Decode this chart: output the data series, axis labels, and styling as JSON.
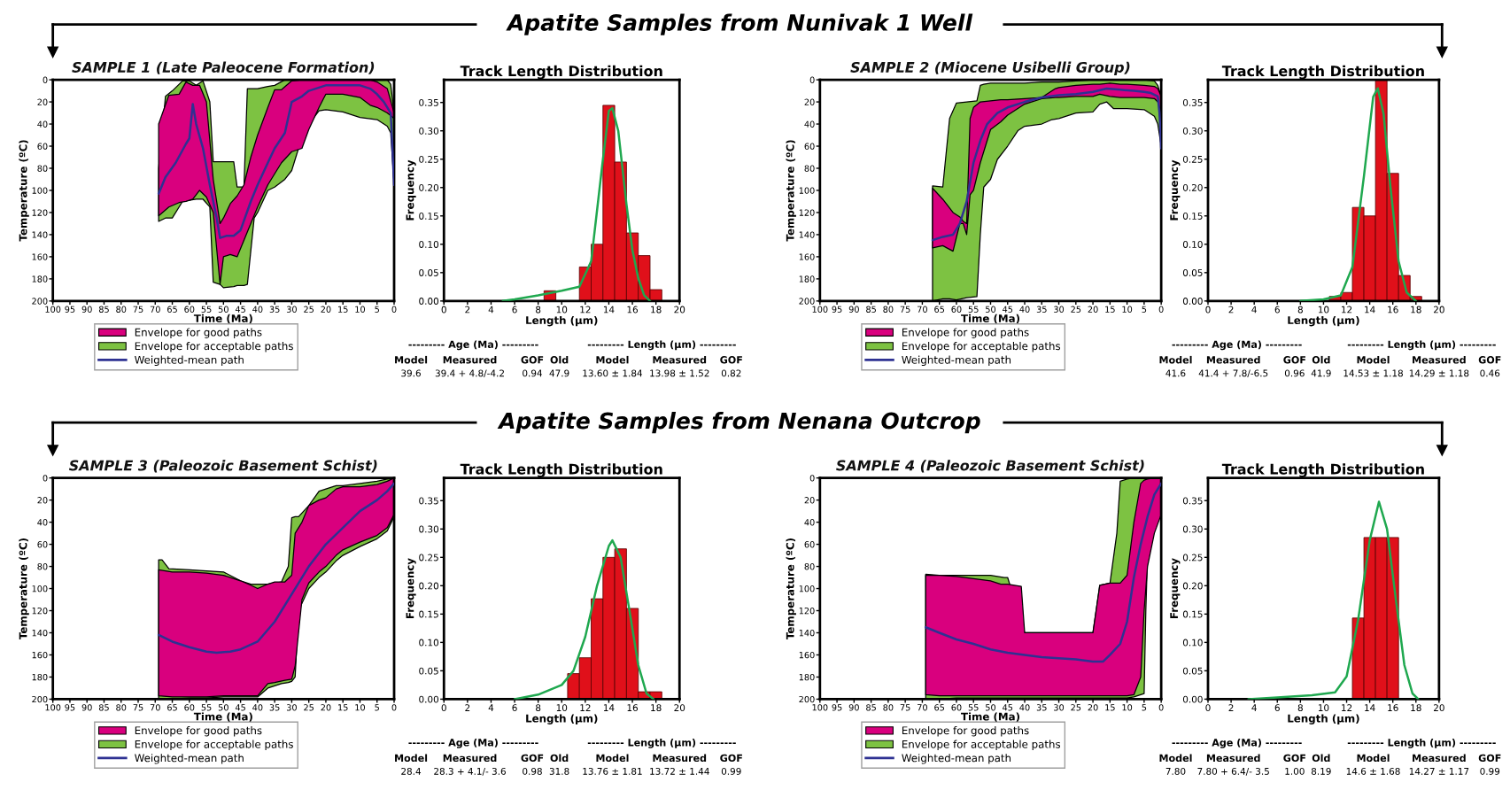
{
  "chart_data": [
    {
      "type": "area",
      "title": "SAMPLE 1 (Late Paleocene Formation)",
      "xlabel": "Time (Ma)",
      "ylabel": "Temperature (ºC)",
      "xlim": [
        100,
        0
      ],
      "ylim": [
        200,
        0
      ],
      "xticks": [
        100,
        95,
        90,
        85,
        80,
        75,
        70,
        65,
        60,
        55,
        50,
        45,
        40,
        35,
        30,
        25,
        20,
        15,
        10,
        5,
        0
      ],
      "yticks": [
        0,
        20,
        40,
        60,
        80,
        100,
        120,
        140,
        160,
        180,
        200
      ],
      "legend": "bottom",
      "grid": false,
      "annotations": [
        "Apatite Samples from Nunivak 1 Well"
      ],
      "series": [
        {
          "name": "Envelope for good paths",
          "type": "area",
          "color": "#d9007e",
          "x": [
            69,
            66,
            63,
            61,
            59,
            57,
            55,
            53,
            51,
            50,
            48,
            46,
            44,
            42,
            40,
            37,
            35,
            33,
            30,
            27,
            25,
            22,
            20,
            15,
            10,
            7,
            5,
            2,
            0
          ],
          "values": [
            null,
            null,
            null,
            null,
            null,
            null,
            null,
            null,
            null,
            null,
            null,
            null,
            null,
            null,
            null,
            null,
            null,
            null,
            null,
            null,
            null,
            null,
            null,
            null,
            null,
            null,
            null,
            null,
            null
          ],
          "lower": [
            40,
            14,
            13,
            2,
            5,
            5,
            20,
            90,
            130,
            125,
            112,
            105,
            95,
            70,
            50,
            25,
            9,
            9,
            1,
            0,
            0,
            0,
            0,
            0,
            0,
            0,
            2,
            8,
            30
          ],
          "upper": [
            123,
            115,
            111,
            110,
            108,
            100,
            106,
            120,
            185,
            160,
            158,
            160,
            145,
            130,
            115,
            95,
            85,
            75,
            65,
            62,
            45,
            25,
            13,
            13,
            16,
            23,
            25,
            30,
            35
          ]
        },
        {
          "name": "Envelope for acceptable paths",
          "type": "area",
          "color": "#7dc242",
          "x": [
            69,
            67,
            65,
            62,
            60,
            58,
            56,
            54,
            53,
            51,
            50,
            47,
            46,
            44,
            43,
            41,
            40,
            37,
            35,
            32,
            30,
            28,
            25,
            22,
            20,
            15,
            10,
            5,
            2,
            1,
            0
          ],
          "values": [
            null,
            null,
            null,
            null,
            null,
            null,
            null,
            null,
            null,
            null,
            null,
            null,
            null,
            null,
            null,
            null,
            null,
            null,
            null,
            null,
            null,
            null,
            null,
            null,
            null,
            null,
            null,
            null,
            null,
            null,
            null
          ],
          "lower": [
            80,
            15,
            10,
            1,
            1,
            5,
            1,
            20,
            74,
            74,
            74,
            74,
            97,
            97,
            8,
            8,
            8,
            6,
            5,
            0,
            0,
            0,
            0,
            0,
            0,
            0,
            0,
            0,
            0,
            4,
            30
          ],
          "upper": [
            128,
            125,
            125,
            110,
            109,
            108,
            108,
            115,
            183,
            185,
            188,
            187,
            186,
            186,
            185,
            125,
            120,
            100,
            97,
            90,
            82,
            62,
            40,
            28,
            27,
            29,
            34,
            36,
            42,
            48,
            95
          ]
        },
        {
          "name": "Weighted-mean path",
          "type": "line",
          "color": "#2e3192",
          "x": [
            69,
            67,
            64,
            61,
            60,
            59,
            58,
            56,
            54,
            52,
            51,
            49,
            47,
            45,
            42,
            40,
            37,
            35,
            32,
            30,
            27,
            25,
            20,
            15,
            10,
            7,
            5,
            3,
            1,
            0
          ],
          "values": [
            103,
            88,
            75,
            58,
            53,
            22,
            40,
            62,
            95,
            125,
            143,
            141,
            141,
            136,
            110,
            95,
            75,
            62,
            48,
            20,
            15,
            10,
            5,
            5,
            5,
            8,
            13,
            20,
            30,
            95
          ]
        }
      ]
    },
    {
      "type": "histogram",
      "title": "Track Length Distribution",
      "xlabel": "Length (µm)",
      "ylabel": "Frequency",
      "xlim": [
        0,
        20
      ],
      "ylim": [
        0,
        0.39
      ],
      "xticks": [
        0,
        2,
        4,
        6,
        8,
        10,
        12,
        14,
        16,
        18,
        20
      ],
      "yticks": [
        {
          "value": 0,
          "label": "0.00"
        },
        {
          "value": 0.05,
          "label": "0.05"
        },
        {
          "value": 0.1,
          "label": "0.10"
        },
        {
          "value": 0.15,
          "label": "0.15"
        },
        {
          "value": 0.2,
          "label": "0.20"
        },
        {
          "value": 0.25,
          "label": "0.25"
        },
        {
          "value": 0.3,
          "label": "0.30"
        },
        {
          "value": 0.35,
          "label": "0.35"
        }
      ],
      "grid": false,
      "color": "#e0101a",
      "bins": [
        8.5,
        9.5,
        10.5,
        11.5,
        12.5,
        13.5,
        14.5,
        15.5,
        16.5,
        17.5,
        18.5
      ],
      "values": [
        0.018,
        0,
        0,
        0.06,
        0.1,
        0.345,
        0.245,
        0.12,
        0.08,
        0.02
      ],
      "series": [
        {
          "type": "line",
          "color": "#1fa84f",
          "x": [
            5,
            6,
            8,
            10,
            11.5,
            12.5,
            13.5,
            14,
            14.3,
            14.8,
            15.5,
            16,
            16.5,
            17,
            17.5
          ],
          "values": [
            0,
            0.003,
            0.01,
            0.018,
            0.025,
            0.07,
            0.25,
            0.335,
            0.34,
            0.3,
            0.17,
            0.09,
            0.04,
            0.01,
            0
          ]
        }
      ],
      "annotations": [
        "--------- Age (Ma) ---------",
        "--------- Length (µm) ---------",
        "Model",
        "Measured",
        "GOF",
        "Old",
        "Model",
        "Measured",
        "GOF",
        "39.6",
        "39.4 + 4.8/-4.2",
        "0.94",
        "47.9",
        "13.60 ± 1.84",
        "13.98 ± 1.52",
        "0.82"
      ]
    },
    {
      "type": "area",
      "title": "SAMPLE 2 (Miocene Usibelli Group)",
      "xlabel": "Time (Ma)",
      "ylabel": "Temperature (ºC)",
      "xlim": [
        100,
        0
      ],
      "ylim": [
        200,
        0
      ],
      "xticks": [
        100,
        95,
        90,
        85,
        80,
        75,
        70,
        65,
        60,
        55,
        50,
        45,
        40,
        35,
        30,
        25,
        20,
        15,
        10,
        5,
        0
      ],
      "yticks": [
        0,
        20,
        40,
        60,
        80,
        100,
        120,
        140,
        160,
        180,
        200
      ],
      "legend": "bottom",
      "grid": false,
      "series": [
        {
          "name": "Envelope for good paths",
          "type": "area",
          "color": "#d9007e",
          "x": [
            67,
            64,
            61,
            59,
            58,
            57,
            56,
            55,
            53,
            50,
            47,
            45,
            40,
            35,
            31,
            30,
            25,
            20,
            18,
            15,
            12,
            10,
            5,
            2,
            1,
            0
          ],
          "values": [
            null,
            null,
            null,
            null,
            null,
            null,
            null,
            null,
            null,
            null,
            null,
            null,
            null,
            null,
            null,
            null,
            null,
            null,
            null,
            null,
            null,
            null,
            null,
            null,
            null,
            null
          ],
          "lower": [
            98,
            108,
            120,
            124,
            128,
            130,
            35,
            25,
            20,
            19,
            18,
            18,
            17,
            16,
            8,
            7,
            5,
            4,
            4,
            3,
            4,
            4,
            5,
            6,
            8,
            15
          ],
          "upper": [
            152,
            150,
            155,
            130,
            130,
            140,
            104,
            100,
            75,
            45,
            38,
            32,
            22,
            17,
            16,
            16,
            15,
            15,
            13,
            15,
            16,
            16,
            16,
            17,
            20,
            30
          ]
        },
        {
          "name": "Envelope for acceptable paths",
          "type": "area",
          "color": "#7dc242",
          "x": [
            67,
            64,
            62,
            60,
            57,
            54,
            53,
            52,
            50,
            48,
            45,
            42,
            40,
            35,
            32,
            30,
            25,
            20,
            18,
            16,
            14,
            10,
            5,
            2,
            1,
            0
          ],
          "values": [
            null,
            null,
            null,
            null,
            null,
            null,
            null,
            null,
            null,
            null,
            null,
            null,
            null,
            null,
            null,
            null,
            null,
            null,
            null,
            null,
            null,
            null,
            null,
            null,
            null,
            null
          ],
          "lower": [
            96,
            97,
            35,
            21,
            20,
            19,
            5,
            4,
            3,
            3,
            3,
            3,
            3,
            2,
            2,
            2,
            1,
            0,
            0,
            0,
            0,
            0,
            0,
            1,
            5,
            15
          ],
          "upper": [
            200,
            198,
            198,
            199,
            197,
            196,
            140,
            97,
            90,
            72,
            60,
            46,
            42,
            40,
            36,
            35,
            30,
            29,
            22,
            20,
            26,
            26,
            27,
            33,
            40,
            60
          ]
        },
        {
          "name": "Weighted-mean path",
          "type": "line",
          "color": "#2e3192",
          "x": [
            67,
            64,
            61,
            59,
            57,
            55,
            53,
            51,
            48,
            45,
            40,
            35,
            30,
            25,
            20,
            16,
            12,
            8,
            5,
            3,
            1,
            0.5,
            0
          ],
          "values": [
            145,
            142,
            140,
            130,
            110,
            75,
            55,
            40,
            30,
            25,
            20,
            16,
            14,
            13,
            11,
            8,
            9,
            10,
            11,
            12,
            15,
            30,
            62
          ]
        }
      ]
    },
    {
      "type": "histogram",
      "title": "Track Length Distribution",
      "xlabel": "Length (µm)",
      "ylabel": "Frequency",
      "xlim": [
        0,
        20
      ],
      "ylim": [
        0,
        0.39
      ],
      "xticks": [
        0,
        2,
        4,
        6,
        8,
        10,
        12,
        14,
        16,
        18,
        20
      ],
      "yticks": [
        {
          "value": 0,
          "label": "0.00"
        },
        {
          "value": 0.05,
          "label": "0.05"
        },
        {
          "value": 0.1,
          "label": "0.10"
        },
        {
          "value": 0.15,
          "label": "0.15"
        },
        {
          "value": 0.2,
          "label": "0.20"
        },
        {
          "value": 0.25,
          "label": "0.25"
        },
        {
          "value": 0.3,
          "label": "0.30"
        },
        {
          "value": 0.35,
          "label": "0.35"
        }
      ],
      "grid": false,
      "color": "#e0101a",
      "bins": [
        10.5,
        11.5,
        12.5,
        13.5,
        14.5,
        15.5,
        16.5,
        17.5,
        18.5
      ],
      "values": [
        0.008,
        0.015,
        0.165,
        0.15,
        0.39,
        0.225,
        0.045,
        0.008
      ],
      "series": [
        {
          "type": "line",
          "color": "#1fa84f",
          "x": [
            8,
            10,
            11.5,
            12.5,
            13.5,
            14.3,
            14.7,
            15.2,
            15.8,
            16.5,
            17.2,
            18
          ],
          "values": [
            0,
            0.003,
            0.01,
            0.06,
            0.22,
            0.36,
            0.375,
            0.33,
            0.2,
            0.07,
            0.015,
            0
          ]
        }
      ],
      "annotations": [
        "--------- Age (Ma) ---------",
        "--------- Length (µm) ---------",
        "Model",
        "Measured",
        "GOF",
        "Old",
        "Model",
        "Measured",
        "GOF",
        "41.6",
        "41.4 + 7.8/-6.5",
        "0.96",
        "41.9",
        "14.53 ± 1.18",
        "14.29 ± 1.18",
        "0.46"
      ]
    },
    {
      "type": "area",
      "title": "SAMPLE 3 (Paleozoic Basement Schist)",
      "xlabel": "Time (Ma)",
      "ylabel": "Temperature (ºC)",
      "xlim": [
        100,
        0
      ],
      "ylim": [
        200,
        0
      ],
      "xticks": [
        100,
        95,
        90,
        85,
        80,
        75,
        70,
        65,
        60,
        55,
        50,
        45,
        40,
        35,
        30,
        25,
        20,
        15,
        10,
        5,
        0
      ],
      "yticks": [
        0,
        20,
        40,
        60,
        80,
        100,
        120,
        140,
        160,
        180,
        200
      ],
      "legend": "bottom",
      "grid": false,
      "annotations": [
        "Apatite Samples from Nenana Outcrop"
      ],
      "series": [
        {
          "name": "Envelope for good paths",
          "type": "area",
          "color": "#d9007e",
          "x": [
            69,
            65,
            60,
            55,
            50,
            45,
            42,
            40,
            37,
            35,
            32,
            30,
            29,
            27,
            25,
            22,
            20,
            17,
            15,
            10,
            5,
            2,
            0
          ],
          "values": [
            null,
            null,
            null,
            null,
            null,
            null,
            null,
            null,
            null,
            null,
            null,
            null,
            null,
            null,
            null,
            null,
            null,
            null,
            null,
            null,
            null,
            null,
            null
          ],
          "lower": [
            83,
            85,
            85,
            86,
            88,
            93,
            97,
            100,
            96,
            94,
            94,
            88,
            50,
            40,
            25,
            20,
            18,
            10,
            8,
            8,
            6,
            3,
            0
          ],
          "upper": [
            197,
            198,
            198,
            198,
            197,
            197,
            197,
            197,
            186,
            185,
            183,
            182,
            170,
            110,
            95,
            85,
            80,
            70,
            65,
            58,
            52,
            45,
            33
          ]
        },
        {
          "name": "Envelope for acceptable paths",
          "type": "area",
          "color": "#7dc242",
          "x": [
            69,
            68,
            66,
            60,
            55,
            50,
            45,
            42,
            40,
            37,
            35,
            33,
            31,
            30,
            29,
            28,
            25,
            22,
            20,
            17,
            15,
            10,
            5,
            2,
            0
          ],
          "values": [
            null,
            null,
            null,
            null,
            null,
            null,
            null,
            null,
            null,
            null,
            null,
            null,
            null,
            null,
            null,
            null,
            null,
            null,
            null,
            null,
            null,
            null,
            null,
            null,
            null
          ],
          "lower": [
            74,
            74,
            82,
            83,
            84,
            85,
            93,
            96,
            96,
            96,
            95,
            94,
            80,
            36,
            35,
            35,
            25,
            12,
            10,
            7,
            7,
            5,
            3,
            1,
            0
          ],
          "upper": [
            200,
            200,
            200,
            199,
            199,
            198,
            198,
            198,
            198,
            190,
            188,
            186,
            185,
            184,
            180,
            120,
            100,
            90,
            85,
            75,
            70,
            62,
            55,
            48,
            35
          ]
        },
        {
          "name": "Weighted-mean path",
          "type": "line",
          "color": "#2e3192",
          "x": [
            69,
            65,
            60,
            55,
            52,
            48,
            45,
            40,
            35,
            30,
            25,
            20,
            15,
            10,
            5,
            2,
            0
          ],
          "values": [
            142,
            148,
            153,
            157,
            158,
            157,
            155,
            148,
            130,
            105,
            80,
            60,
            45,
            30,
            20,
            12,
            5
          ]
        }
      ]
    },
    {
      "type": "histogram",
      "title": "Track Length Distribution",
      "xlabel": "Length (µm)",
      "ylabel": "Frequency",
      "xlim": [
        0,
        20
      ],
      "ylim": [
        0,
        0.39
      ],
      "xticks": [
        0,
        2,
        4,
        6,
        8,
        10,
        12,
        14,
        16,
        18,
        20
      ],
      "yticks": [
        {
          "value": 0,
          "label": "0.00"
        },
        {
          "value": 0.05,
          "label": "0.05"
        },
        {
          "value": 0.1,
          "label": "0.10"
        },
        {
          "value": 0.15,
          "label": "0.15"
        },
        {
          "value": 0.2,
          "label": "0.20"
        },
        {
          "value": 0.25,
          "label": "0.25"
        },
        {
          "value": 0.3,
          "label": "0.30"
        },
        {
          "value": 0.35,
          "label": "0.35"
        }
      ],
      "grid": false,
      "color": "#e0101a",
      "bins": [
        10.5,
        11.5,
        12.5,
        13.5,
        14.5,
        15.5,
        16.5,
        17.5,
        18.5
      ],
      "values": [
        0.045,
        0.073,
        0.177,
        0.25,
        0.265,
        0.16,
        0.013,
        0.013
      ],
      "series": [
        {
          "type": "line",
          "color": "#1fa84f",
          "x": [
            6,
            8,
            10,
            11,
            12,
            13,
            14,
            14.3,
            15,
            15.8,
            16.5,
            17.2,
            17.8
          ],
          "values": [
            0,
            0.008,
            0.025,
            0.05,
            0.11,
            0.2,
            0.27,
            0.28,
            0.25,
            0.15,
            0.06,
            0.01,
            0
          ]
        }
      ],
      "annotations": [
        "--------- Age (Ma) ---------",
        "--------- Length (µm) ---------",
        "Model",
        "Measured",
        "GOF",
        "Old",
        "Model",
        "Measured",
        "GOF",
        "28.4",
        "28.3 + 4.1/- 3.6",
        "0.98",
        "31.8",
        "13.76 ± 1.81",
        "13.72 ± 1.44",
        "0.99"
      ]
    },
    {
      "type": "area",
      "title": "SAMPLE 4 (Paleozoic Basement Schist)",
      "xlabel": "Time (Ma)",
      "ylabel": "Temperature (ºC)",
      "xlim": [
        100,
        0
      ],
      "ylim": [
        200,
        0
      ],
      "xticks": [
        100,
        95,
        90,
        85,
        80,
        75,
        70,
        65,
        60,
        55,
        50,
        45,
        40,
        35,
        30,
        25,
        20,
        15,
        10,
        5,
        0
      ],
      "yticks": [
        0,
        20,
        40,
        60,
        80,
        100,
        120,
        140,
        160,
        180,
        200
      ],
      "legend": "bottom",
      "grid": false,
      "series": [
        {
          "name": "Envelope for good paths",
          "type": "area",
          "color": "#d9007e",
          "x": [
            69,
            65,
            60,
            50,
            47,
            45,
            41,
            40,
            35,
            25,
            20,
            18,
            15,
            12,
            10,
            8,
            6,
            5,
            4,
            2,
            0
          ],
          "values": [
            null,
            null,
            null,
            null,
            null,
            null,
            null,
            null,
            null,
            null,
            null,
            null,
            null,
            null,
            null,
            null,
            null,
            null,
            null,
            null,
            null
          ],
          "lower": [
            88,
            88,
            89,
            93,
            96,
            96,
            98,
            140,
            140,
            140,
            140,
            97,
            95,
            95,
            88,
            40,
            5,
            2,
            1,
            0,
            0
          ],
          "upper": [
            196,
            197,
            197,
            197,
            197,
            197,
            197,
            197,
            197,
            197,
            197,
            197,
            197,
            197,
            197,
            196,
            180,
            120,
            80,
            50,
            33
          ]
        },
        {
          "name": "Envelope for acceptable paths",
          "type": "area",
          "color": "#7dc242",
          "x": [
            69,
            65,
            60,
            50,
            46,
            45,
            40,
            35,
            25,
            20,
            18,
            15,
            13,
            12,
            10,
            8,
            5,
            4.5,
            4,
            2,
            0
          ],
          "values": [
            null,
            null,
            null,
            null,
            null,
            null,
            null,
            null,
            null,
            null,
            null,
            null,
            null,
            null,
            null,
            null,
            null,
            null,
            null,
            null,
            null
          ],
          "lower": [
            87,
            88,
            88,
            88,
            90,
            90,
            140,
            140,
            140,
            140,
            97,
            95,
            50,
            3,
            1,
            0,
            0,
            0,
            0,
            0,
            0
          ],
          "upper": [
            200,
            200,
            199,
            199,
            199,
            199,
            199,
            199,
            199,
            199,
            199,
            199,
            199,
            199,
            199,
            198,
            195,
            120,
            70,
            45,
            30
          ]
        },
        {
          "name": "Weighted-mean path",
          "type": "line",
          "color": "#2e3192",
          "x": [
            69,
            65,
            60,
            55,
            50,
            45,
            40,
            35,
            30,
            25,
            20,
            17,
            15,
            12,
            10,
            8,
            6,
            4,
            2,
            0
          ],
          "values": [
            135,
            140,
            146,
            150,
            155,
            158,
            160,
            162,
            163,
            164,
            166,
            166,
            160,
            150,
            130,
            90,
            60,
            35,
            15,
            5
          ]
        }
      ]
    },
    {
      "type": "histogram",
      "title": "Track Length Distribution",
      "xlabel": "Length (µm)",
      "ylabel": "Frequency",
      "xlim": [
        0,
        20
      ],
      "ylim": [
        0,
        0.39
      ],
      "xticks": [
        0,
        2,
        4,
        6,
        8,
        10,
        12,
        14,
        16,
        18,
        20
      ],
      "yticks": [
        {
          "value": 0,
          "label": "0.00"
        },
        {
          "value": 0.05,
          "label": "0.05"
        },
        {
          "value": 0.1,
          "label": "0.10"
        },
        {
          "value": 0.15,
          "label": "0.15"
        },
        {
          "value": 0.2,
          "label": "0.20"
        },
        {
          "value": 0.25,
          "label": "0.25"
        },
        {
          "value": 0.3,
          "label": "0.30"
        },
        {
          "value": 0.35,
          "label": "0.35"
        }
      ],
      "grid": false,
      "color": "#e0101a",
      "bins": [
        12.5,
        13.5,
        14.5,
        15.5,
        16.5
      ],
      "values": [
        0.143,
        0.285,
        0.285,
        0.285
      ],
      "series": [
        {
          "type": "line",
          "color": "#1fa84f",
          "x": [
            3.5,
            6,
            9,
            11,
            12,
            13,
            14,
            14.8,
            15.5,
            16.3,
            17,
            17.7,
            18.2
          ],
          "values": [
            0,
            0.003,
            0.007,
            0.012,
            0.04,
            0.14,
            0.28,
            0.348,
            0.3,
            0.17,
            0.06,
            0.01,
            0
          ]
        }
      ],
      "annotations": [
        "--------- Age (Ma) ---------",
        "--------- Length (µm) ---------",
        "Model",
        "Measured",
        "GOF",
        "Old",
        "Model",
        "Measured",
        "GOF",
        "7.80",
        "7.80 + 6.4/- 3.5",
        "1.00",
        "8.19",
        "14.6 ± 1.68",
        "14.27 ± 1.17",
        "0.99"
      ]
    }
  ]
}
